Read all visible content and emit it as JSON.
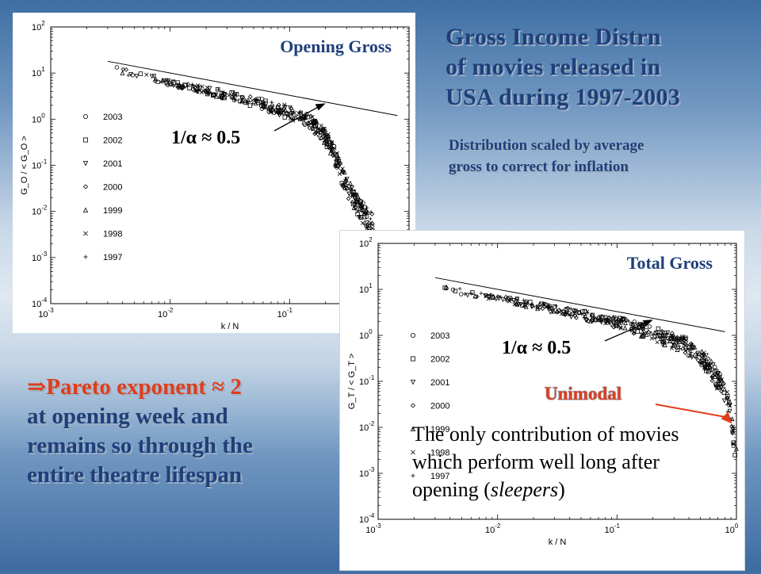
{
  "title_lines": [
    "Gross Income Distrn",
    "of movies released in",
    "USA during 1997-2003"
  ],
  "subtitle_lines": [
    "Distribution scaled by average",
    "gross to correct for inflation"
  ],
  "conclusion": {
    "line1_accent": "⇒Pareto exponent ≈ 2",
    "line2": "at opening week and",
    "line3": "remains so through the",
    "line4": "entire theatre lifespan"
  },
  "sleepers_note": {
    "text_before": "The only contribution of movies which perform well long after opening (",
    "emphasis": "sleepers",
    "text_after": ")"
  },
  "colors": {
    "heading": "#1f3f7a",
    "accent": "#e03d1a",
    "arrow": "#e03d1a"
  },
  "chart_data": [
    {
      "type": "scatter",
      "title": "Opening Gross",
      "xlabel": "k / N",
      "ylabel": "G_O / < G_O >",
      "x_scale": "log",
      "y_scale": "log",
      "xlim": [
        0.001,
        1
      ],
      "ylim": [
        0.0001,
        100
      ],
      "x_ticks": [
        {
          "base": "10",
          "exp": "-3",
          "value": 0.001
        },
        {
          "base": "10",
          "exp": "-2",
          "value": 0.01
        },
        {
          "base": "10",
          "exp": "-1",
          "value": 0.1
        }
      ],
      "y_ticks": [
        {
          "base": "10",
          "exp": "2",
          "value": 100
        },
        {
          "base": "10",
          "exp": "1",
          "value": 10
        },
        {
          "base": "10",
          "exp": "0",
          "value": 1
        },
        {
          "base": "10",
          "exp": "-1",
          "value": 0.1
        },
        {
          "base": "10",
          "exp": "-2",
          "value": 0.01
        },
        {
          "base": "10",
          "exp": "-3",
          "value": 0.001
        },
        {
          "base": "10",
          "exp": "-4",
          "value": 0.0001
        }
      ],
      "legend": [
        "2003",
        "2002",
        "2001",
        "2000",
        "1999",
        "1998",
        "1997"
      ],
      "legend_markers": [
        "circle",
        "square",
        "triangle-down",
        "diamond",
        "triangle-up",
        "x",
        "plus"
      ],
      "fit_line": {
        "x": [
          0.003,
          0.8
        ],
        "y": [
          18,
          1.2
        ],
        "label": "1/α ≈ 0.5",
        "slope": -0.5
      },
      "curve_anchors": [
        [
          0.0035,
          12
        ],
        [
          0.006,
          8.5
        ],
        [
          0.01,
          6.2
        ],
        [
          0.02,
          4.2
        ],
        [
          0.05,
          2.4
        ],
        [
          0.1,
          1.4
        ],
        [
          0.15,
          0.85
        ],
        [
          0.2,
          0.42
        ],
        [
          0.25,
          0.12
        ],
        [
          0.3,
          0.035
        ],
        [
          0.4,
          0.01
        ],
        [
          0.5,
          0.005
        ]
      ]
    },
    {
      "type": "scatter",
      "title": "Total Gross",
      "xlabel": "k / N",
      "ylabel": "G_T / < G_T >",
      "x_scale": "log",
      "y_scale": "log",
      "xlim": [
        0.001,
        1
      ],
      "ylim": [
        0.0001,
        100
      ],
      "x_ticks": [
        {
          "base": "10",
          "exp": "-3",
          "value": 0.001
        },
        {
          "base": "10",
          "exp": "-2",
          "value": 0.01
        },
        {
          "base": "10",
          "exp": "-1",
          "value": 0.1
        },
        {
          "base": "10",
          "exp": "0",
          "value": 1
        }
      ],
      "y_ticks": [
        {
          "base": "10",
          "exp": "2",
          "value": 100
        },
        {
          "base": "10",
          "exp": "1",
          "value": 10
        },
        {
          "base": "10",
          "exp": "0",
          "value": 1
        },
        {
          "base": "10",
          "exp": "-1",
          "value": 0.1
        },
        {
          "base": "10",
          "exp": "-2",
          "value": 0.01
        },
        {
          "base": "10",
          "exp": "-3",
          "value": 0.001
        },
        {
          "base": "10",
          "exp": "-4",
          "value": 0.0001
        }
      ],
      "legend": [
        "2003",
        "2002",
        "2001",
        "2000",
        "1999",
        "1998",
        "1997"
      ],
      "legend_markers": [
        "circle",
        "square",
        "triangle-down",
        "diamond",
        "triangle-up",
        "x",
        "plus"
      ],
      "fit_line": {
        "x": [
          0.003,
          0.8
        ],
        "y": [
          18,
          1.2
        ],
        "label": "1/α ≈ 0.5",
        "slope": -0.5
      },
      "annotation": "Unimodal",
      "curve_anchors": [
        [
          0.0035,
          11
        ],
        [
          0.006,
          8
        ],
        [
          0.01,
          6.5
        ],
        [
          0.02,
          4.6
        ],
        [
          0.05,
          2.8
        ],
        [
          0.1,
          1.9
        ],
        [
          0.2,
          1.1
        ],
        [
          0.4,
          0.55
        ],
        [
          0.6,
          0.2
        ],
        [
          0.8,
          0.06
        ],
        [
          0.9,
          0.015
        ],
        [
          0.95,
          0.005
        ],
        [
          1.0,
          0.002
        ]
      ]
    }
  ]
}
